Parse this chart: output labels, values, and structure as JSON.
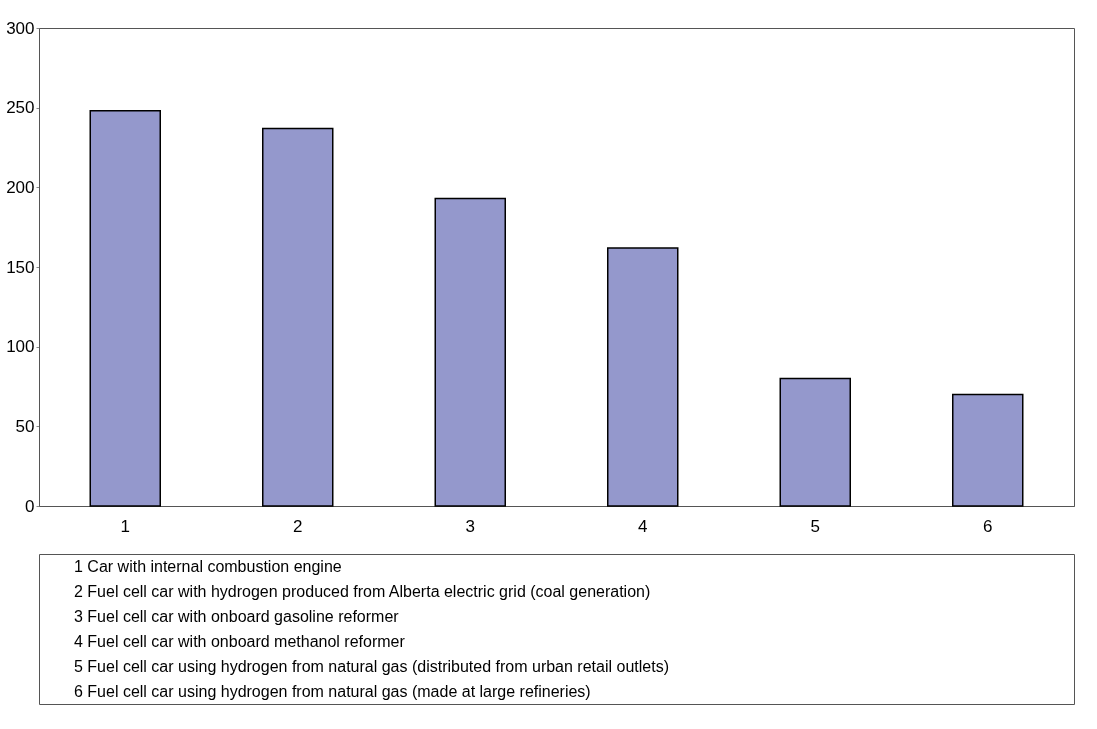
{
  "chart_data": {
    "type": "bar",
    "categories": [
      "1",
      "2",
      "3",
      "4",
      "5",
      "6"
    ],
    "values": [
      248,
      237,
      193,
      162,
      80,
      70
    ],
    "color": "#9498cc",
    "ylim": [
      0,
      300
    ],
    "yticks": [
      0,
      50,
      100,
      150,
      200,
      250,
      300
    ],
    "grid": false,
    "annotations": [
      "1   Car with internal combustion engine",
      "2   Fuel cell car with hydrogen produced from Alberta electric grid (coal generation)",
      "3   Fuel cell car with onboard gasoline reformer",
      "4   Fuel cell car with onboard methanol reformer",
      "5   Fuel cell car using hydrogen from natural gas (distributed from urban retail outlets)",
      "6   Fuel cell car using hydrogen from natural gas (made at large refineries)"
    ]
  }
}
